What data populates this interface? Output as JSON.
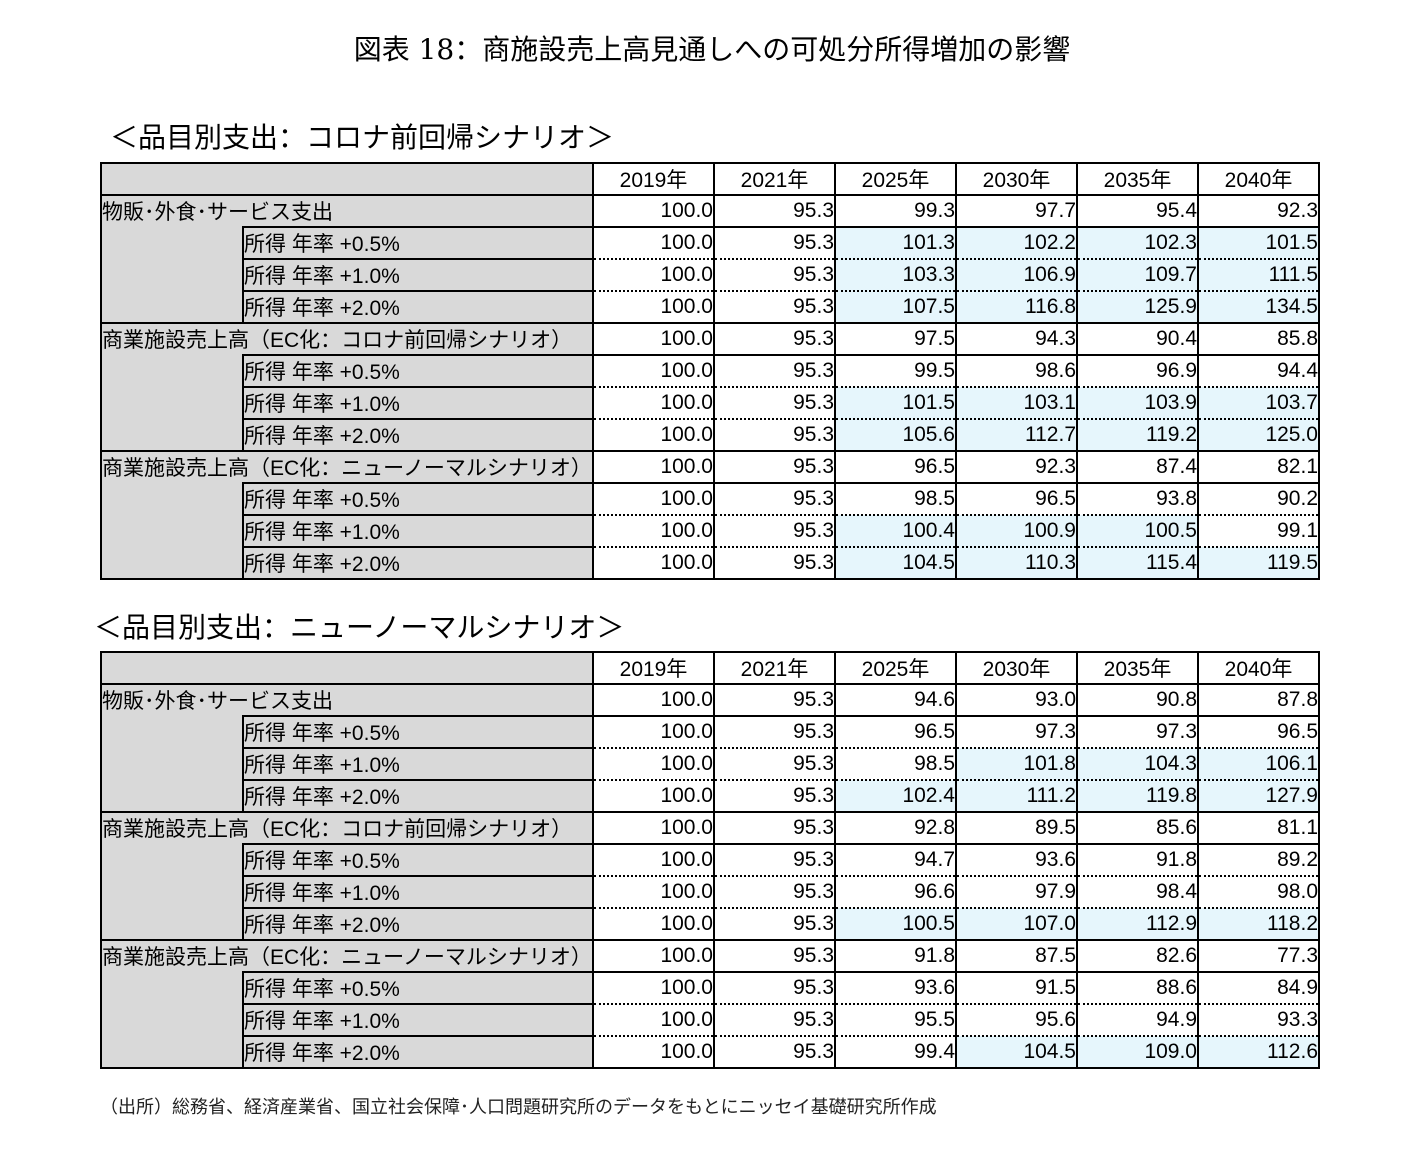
{
  "title": "図表 18：商施設売上高見通しへの可処分所得増加の影響",
  "source": "（出所）総務省、経済産業省、国立社会保障･人口問題研究所のデータをもとにニッセイ基礎研究所作成",
  "colors": {
    "header_gray": "#d9d9d9",
    "highlight": "#e6f6fc"
  },
  "chart_data": [
    {
      "type": "table",
      "title": "＜品目別支出：コロナ前回帰シナリオ＞",
      "columns": [
        "2019年",
        "2021年",
        "2025年",
        "2030年",
        "2035年",
        "2040年"
      ],
      "groups": [
        {
          "label": "物販･外食･サービス支出",
          "values": [
            "100.0",
            "95.3",
            "99.3",
            "97.7",
            "95.4",
            "92.3"
          ],
          "hl": [
            0,
            0,
            0,
            0,
            0,
            0
          ],
          "rows": [
            {
              "label": "所得 年率 +0.5%",
              "values": [
                "100.0",
                "95.3",
                "101.3",
                "102.2",
                "102.3",
                "101.5"
              ],
              "hl": [
                0,
                0,
                1,
                1,
                1,
                1
              ]
            },
            {
              "label": "所得 年率 +1.0%",
              "values": [
                "100.0",
                "95.3",
                "103.3",
                "106.9",
                "109.7",
                "111.5"
              ],
              "hl": [
                0,
                0,
                1,
                1,
                1,
                1
              ]
            },
            {
              "label": "所得 年率 +2.0%",
              "values": [
                "100.0",
                "95.3",
                "107.5",
                "116.8",
                "125.9",
                "134.5"
              ],
              "hl": [
                0,
                0,
                1,
                1,
                1,
                1
              ]
            }
          ]
        },
        {
          "label": "商業施設売上高（EC化：コロナ前回帰シナリオ）",
          "values": [
            "100.0",
            "95.3",
            "97.5",
            "94.3",
            "90.4",
            "85.8"
          ],
          "hl": [
            0,
            0,
            0,
            0,
            0,
            0
          ],
          "rows": [
            {
              "label": "所得 年率 +0.5%",
              "values": [
                "100.0",
                "95.3",
                "99.5",
                "98.6",
                "96.9",
                "94.4"
              ],
              "hl": [
                0,
                0,
                0,
                0,
                0,
                0
              ]
            },
            {
              "label": "所得 年率 +1.0%",
              "values": [
                "100.0",
                "95.3",
                "101.5",
                "103.1",
                "103.9",
                "103.7"
              ],
              "hl": [
                0,
                0,
                1,
                1,
                1,
                1
              ]
            },
            {
              "label": "所得 年率 +2.0%",
              "values": [
                "100.0",
                "95.3",
                "105.6",
                "112.7",
                "119.2",
                "125.0"
              ],
              "hl": [
                0,
                0,
                1,
                1,
                1,
                1
              ]
            }
          ]
        },
        {
          "label": "商業施設売上高（EC化：ニューノーマルシナリオ）",
          "values": [
            "100.0",
            "95.3",
            "96.5",
            "92.3",
            "87.4",
            "82.1"
          ],
          "hl": [
            0,
            0,
            0,
            0,
            0,
            0
          ],
          "rows": [
            {
              "label": "所得 年率 +0.5%",
              "values": [
                "100.0",
                "95.3",
                "98.5",
                "96.5",
                "93.8",
                "90.2"
              ],
              "hl": [
                0,
                0,
                0,
                0,
                0,
                0
              ]
            },
            {
              "label": "所得 年率 +1.0%",
              "values": [
                "100.0",
                "95.3",
                "100.4",
                "100.9",
                "100.5",
                "99.1"
              ],
              "hl": [
                0,
                0,
                1,
                1,
                1,
                0
              ]
            },
            {
              "label": "所得 年率 +2.0%",
              "values": [
                "100.0",
                "95.3",
                "104.5",
                "110.3",
                "115.4",
                "119.5"
              ],
              "hl": [
                0,
                0,
                1,
                1,
                1,
                1
              ]
            }
          ]
        }
      ]
    },
    {
      "type": "table",
      "title": "＜品目別支出：ニューノーマルシナリオ＞",
      "columns": [
        "2019年",
        "2021年",
        "2025年",
        "2030年",
        "2035年",
        "2040年"
      ],
      "groups": [
        {
          "label": "物販･外食･サービス支出",
          "values": [
            "100.0",
            "95.3",
            "94.6",
            "93.0",
            "90.8",
            "87.8"
          ],
          "hl": [
            0,
            0,
            0,
            0,
            0,
            0
          ],
          "rows": [
            {
              "label": "所得 年率 +0.5%",
              "values": [
                "100.0",
                "95.3",
                "96.5",
                "97.3",
                "97.3",
                "96.5"
              ],
              "hl": [
                0,
                0,
                0,
                0,
                0,
                0
              ]
            },
            {
              "label": "所得 年率 +1.0%",
              "values": [
                "100.0",
                "95.3",
                "98.5",
                "101.8",
                "104.3",
                "106.1"
              ],
              "hl": [
                0,
                0,
                0,
                1,
                1,
                1
              ]
            },
            {
              "label": "所得 年率 +2.0%",
              "values": [
                "100.0",
                "95.3",
                "102.4",
                "111.2",
                "119.8",
                "127.9"
              ],
              "hl": [
                0,
                0,
                1,
                1,
                1,
                1
              ]
            }
          ]
        },
        {
          "label": "商業施設売上高（EC化：コロナ前回帰シナリオ）",
          "values": [
            "100.0",
            "95.3",
            "92.8",
            "89.5",
            "85.6",
            "81.1"
          ],
          "hl": [
            0,
            0,
            0,
            0,
            0,
            0
          ],
          "rows": [
            {
              "label": "所得 年率 +0.5%",
              "values": [
                "100.0",
                "95.3",
                "94.7",
                "93.6",
                "91.8",
                "89.2"
              ],
              "hl": [
                0,
                0,
                0,
                0,
                0,
                0
              ]
            },
            {
              "label": "所得 年率 +1.0%",
              "values": [
                "100.0",
                "95.3",
                "96.6",
                "97.9",
                "98.4",
                "98.0"
              ],
              "hl": [
                0,
                0,
                0,
                0,
                0,
                0
              ]
            },
            {
              "label": "所得 年率 +2.0%",
              "values": [
                "100.0",
                "95.3",
                "100.5",
                "107.0",
                "112.9",
                "118.2"
              ],
              "hl": [
                0,
                0,
                1,
                1,
                1,
                1
              ]
            }
          ]
        },
        {
          "label": "商業施設売上高（EC化：ニューノーマルシナリオ）",
          "values": [
            "100.0",
            "95.3",
            "91.8",
            "87.5",
            "82.6",
            "77.3"
          ],
          "hl": [
            0,
            0,
            0,
            0,
            0,
            0
          ],
          "rows": [
            {
              "label": "所得 年率 +0.5%",
              "values": [
                "100.0",
                "95.3",
                "93.6",
                "91.5",
                "88.6",
                "84.9"
              ],
              "hl": [
                0,
                0,
                0,
                0,
                0,
                0
              ]
            },
            {
              "label": "所得 年率 +1.0%",
              "values": [
                "100.0",
                "95.3",
                "95.5",
                "95.6",
                "94.9",
                "93.3"
              ],
              "hl": [
                0,
                0,
                0,
                0,
                0,
                0
              ]
            },
            {
              "label": "所得 年率 +2.0%",
              "values": [
                "100.0",
                "95.3",
                "99.4",
                "104.5",
                "109.0",
                "112.6"
              ],
              "hl": [
                0,
                0,
                0,
                1,
                1,
                1
              ]
            }
          ]
        }
      ]
    }
  ]
}
